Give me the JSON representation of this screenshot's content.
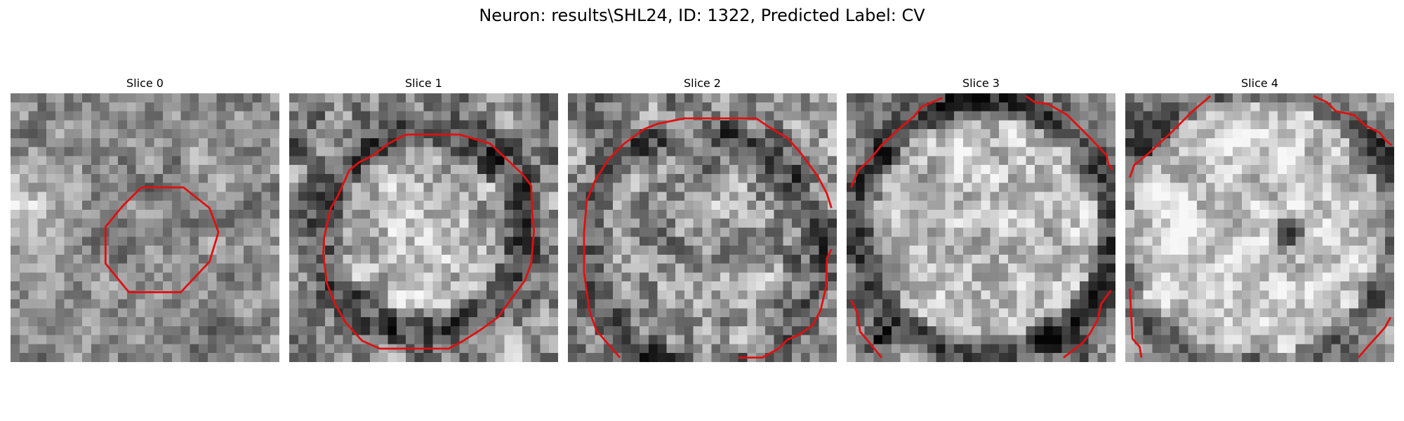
{
  "figure": {
    "title": "Neuron: results\\SHL24, ID: 1322, Predicted Label: CV"
  },
  "grid_size": 30,
  "colors": {
    "contour": "#e01010"
  },
  "slices": [
    {
      "label": "Slice 0",
      "seed": 11,
      "contrast": 0.45,
      "ring": {
        "cx": 15.5,
        "cy": 14.5,
        "r": 5.0,
        "level": -0.08,
        "width": 2.0
      },
      "blobs": [
        {
          "x": 0.5,
          "y": 12.5,
          "r": 3.5,
          "level": 0.3
        },
        {
          "x": 20.0,
          "y": 28.0,
          "r": 4.0,
          "level": -0.12
        }
      ],
      "contours": [
        {
          "closed": true,
          "points": [
            [
              14.8,
              10.5
            ],
            [
              19.3,
              10.5
            ],
            [
              22.2,
              12.8
            ],
            [
              23.2,
              15.5
            ],
            [
              22.2,
              18.8
            ],
            [
              19.0,
              22.2
            ],
            [
              13.2,
              22.2
            ],
            [
              10.6,
              19.0
            ],
            [
              10.6,
              14.9
            ],
            [
              12.5,
              12.6
            ],
            [
              14.5,
              10.6
            ]
          ]
        }
      ]
    },
    {
      "label": "Slice 1",
      "seed": 23,
      "contrast": 0.6,
      "ring": {
        "cx": 15.0,
        "cy": 15.5,
        "r": 11.5,
        "level": -0.28,
        "width": 2.2
      },
      "inner": {
        "level": 0.16
      },
      "blobs": [
        {
          "x": 2.0,
          "y": 4.0,
          "r": 3.0,
          "level": -0.1
        }
      ],
      "contours": [
        {
          "closed": true,
          "points": [
            [
              13.2,
              4.6
            ],
            [
              19.0,
              4.6
            ],
            [
              22.4,
              5.6
            ],
            [
              26.0,
              9.0
            ],
            [
              27.0,
              10.3
            ],
            [
              27.1,
              13.2
            ],
            [
              27.3,
              15.4
            ],
            [
              27.0,
              19.0
            ],
            [
              26.3,
              20.9
            ],
            [
              25.1,
              22.5
            ],
            [
              23.3,
              25.0
            ],
            [
              21.5,
              26.3
            ],
            [
              19.3,
              27.7
            ],
            [
              17.8,
              28.5
            ],
            [
              10.1,
              28.5
            ],
            [
              8.1,
              27.6
            ],
            [
              6.3,
              25.6
            ],
            [
              5.1,
              23.5
            ],
            [
              4.2,
              21.2
            ],
            [
              3.8,
              18.0
            ],
            [
              3.9,
              16.1
            ],
            [
              4.6,
              12.9
            ],
            [
              5.4,
              11.5
            ],
            [
              6.7,
              8.6
            ],
            [
              7.8,
              7.7
            ],
            [
              9.4,
              6.9
            ],
            [
              11.1,
              5.6
            ],
            [
              12.8,
              4.7
            ]
          ]
        }
      ]
    },
    {
      "label": "Slice 2",
      "seed": 37,
      "contrast": 0.65,
      "ring": {
        "cx": 15.0,
        "cy": 17.5,
        "r": 13.0,
        "level": -0.22,
        "width": 2.0
      },
      "inner": {
        "level": 0.02
      },
      "blobs": [],
      "contours": [
        {
          "closed": false,
          "points": [
            [
              5.8,
              29.5
            ],
            [
              3.2,
              26.5
            ],
            [
              2.4,
              24.3
            ],
            [
              1.8,
              20.0
            ],
            [
              1.8,
              15.5
            ],
            [
              2.1,
              12.0
            ],
            [
              3.0,
              9.8
            ],
            [
              4.5,
              7.4
            ],
            [
              6.3,
              5.6
            ],
            [
              8.5,
              4.0
            ],
            [
              10.0,
              3.4
            ],
            [
              13.0,
              2.8
            ],
            [
              21.0,
              2.8
            ],
            [
              22.5,
              3.8
            ],
            [
              24.5,
              5.0
            ],
            [
              26.0,
              6.7
            ],
            [
              27.9,
              9.3
            ],
            [
              28.9,
              11.2
            ],
            [
              29.4,
              12.8
            ]
          ]
        },
        {
          "closed": false,
          "points": [
            [
              29.4,
              17.4
            ],
            [
              28.9,
              18.4
            ],
            [
              28.8,
              21.6
            ],
            [
              28.2,
              24.2
            ],
            [
              27.3,
              25.9
            ],
            [
              25.9,
              26.9
            ],
            [
              24.5,
              27.5
            ],
            [
              23.5,
              28.5
            ],
            [
              21.7,
              29.5
            ],
            [
              19.0,
              29.5
            ]
          ]
        }
      ]
    },
    {
      "label": "Slice 3",
      "seed": 53,
      "contrast": 0.55,
      "ring": {
        "cx": 15.5,
        "cy": 15.0,
        "r": 14.3,
        "level": -0.32,
        "width": 1.8
      },
      "inner": {
        "level": 0.18
      },
      "blobs": [
        {
          "x": 3.5,
          "y": 27.0,
          "r": 1.8,
          "level": -0.35
        },
        {
          "x": 25.0,
          "y": 28.5,
          "r": 2.5,
          "level": -0.2
        }
      ],
      "contours": [
        {
          "closed": false,
          "points": [
            [
              0.5,
              10.5
            ],
            [
              1.3,
              8.6
            ],
            [
              2.6,
              7.4
            ],
            [
              3.8,
              5.9
            ],
            [
              5.7,
              4.1
            ],
            [
              7.5,
              2.6
            ],
            [
              8.4,
              1.5
            ],
            [
              10.7,
              0.5
            ]
          ]
        },
        {
          "closed": false,
          "points": [
            [
              20.0,
              0.3
            ],
            [
              21.0,
              1.0
            ],
            [
              22.5,
              1.2
            ],
            [
              24.6,
              2.4
            ],
            [
              27.0,
              4.8
            ],
            [
              29.0,
              6.9
            ],
            [
              29.2,
              7.9
            ],
            [
              29.7,
              8.5
            ]
          ]
        },
        {
          "closed": false,
          "points": [
            [
              0.5,
              23.1
            ],
            [
              1.2,
              24.5
            ],
            [
              1.5,
              26.6
            ],
            [
              2.6,
              27.9
            ],
            [
              3.9,
              29.5
            ]
          ]
        },
        {
          "closed": false,
          "points": [
            [
              29.5,
              22.0
            ],
            [
              28.4,
              23.5
            ],
            [
              28.0,
              25.3
            ],
            [
              27.1,
              26.9
            ],
            [
              26.3,
              27.9
            ],
            [
              25.0,
              28.9
            ],
            [
              24.2,
              29.5
            ]
          ]
        }
      ]
    },
    {
      "label": "Slice 4",
      "seed": 71,
      "contrast": 0.5,
      "ring": {
        "cx": 14.5,
        "cy": 15.0,
        "r": 16.0,
        "level": -0.15,
        "width": 1.8
      },
      "inner": {
        "level": 0.22
      },
      "blobs": [
        {
          "x": 18.6,
          "y": 15.6,
          "r": 1.6,
          "level": -0.75
        },
        {
          "x": 2.5,
          "y": 6.0,
          "r": 2.5,
          "level": -0.25
        },
        {
          "x": 28.0,
          "y": 6.0,
          "r": 3.0,
          "level": -0.18
        }
      ],
      "contours": [
        {
          "closed": false,
          "points": [
            [
              0.5,
              9.4
            ],
            [
              1.0,
              8.0
            ],
            [
              2.5,
              6.8
            ],
            [
              5.0,
              4.5
            ],
            [
              7.5,
              2.0
            ],
            [
              9.5,
              0.3
            ]
          ]
        },
        {
          "closed": false,
          "points": [
            [
              21.0,
              0.3
            ],
            [
              22.5,
              1.0
            ],
            [
              23.5,
              2.0
            ],
            [
              25.5,
              2.4
            ],
            [
              26.8,
              3.6
            ],
            [
              28.4,
              4.4
            ],
            [
              29.0,
              5.2
            ],
            [
              29.7,
              5.8
            ]
          ]
        },
        {
          "closed": false,
          "points": [
            [
              0.5,
              21.8
            ],
            [
              0.8,
              27.4
            ],
            [
              1.6,
              28.3
            ],
            [
              1.8,
              29.5
            ]
          ]
        },
        {
          "closed": false,
          "points": [
            [
              29.6,
              25.0
            ],
            [
              29.0,
              26.1
            ],
            [
              28.3,
              26.9
            ],
            [
              27.3,
              28.0
            ],
            [
              26.0,
              29.5
            ]
          ]
        }
      ]
    }
  ]
}
